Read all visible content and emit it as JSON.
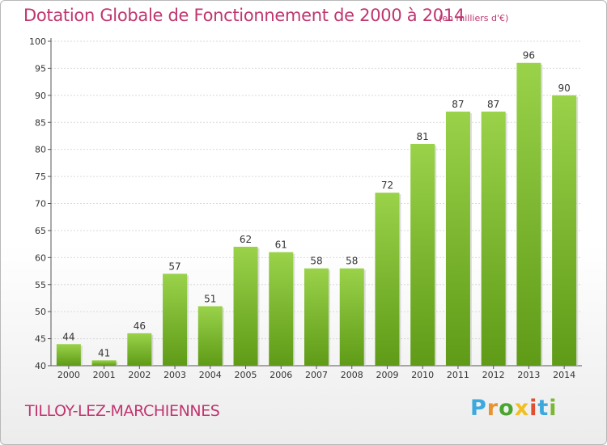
{
  "title": "Dotation Globale de Fonctionnement de 2000 à 2014",
  "subtitle": "(en milliers d'€)",
  "commune": "TILLOY-LEZ-MARCHIENNES",
  "logo": {
    "letters": [
      "P",
      "r",
      "o",
      "x",
      "i",
      "t",
      "i"
    ],
    "colors": [
      "#3ba9dd",
      "#e8932e",
      "#4aa52d",
      "#f1c020",
      "#e04f2f",
      "#3ba9dd",
      "#7ab833"
    ]
  },
  "colors": {
    "bar_top": "#9ad24a",
    "bar_bottom": "#5f9b17",
    "text_accent": "#c0356f",
    "grid": "#d9d9d9"
  },
  "chart_data": {
    "type": "bar",
    "categories": [
      "2000",
      "2001",
      "2002",
      "2003",
      "2004",
      "2005",
      "2006",
      "2007",
      "2008",
      "2009",
      "2010",
      "2011",
      "2012",
      "2013",
      "2014"
    ],
    "values": [
      44,
      41,
      46,
      57,
      51,
      62,
      61,
      58,
      58,
      72,
      81,
      87,
      87,
      96,
      90
    ],
    "ylim": [
      40,
      100
    ],
    "yticks": [
      40,
      45,
      50,
      55,
      60,
      65,
      70,
      75,
      80,
      85,
      90,
      95,
      100
    ],
    "grid": true
  }
}
